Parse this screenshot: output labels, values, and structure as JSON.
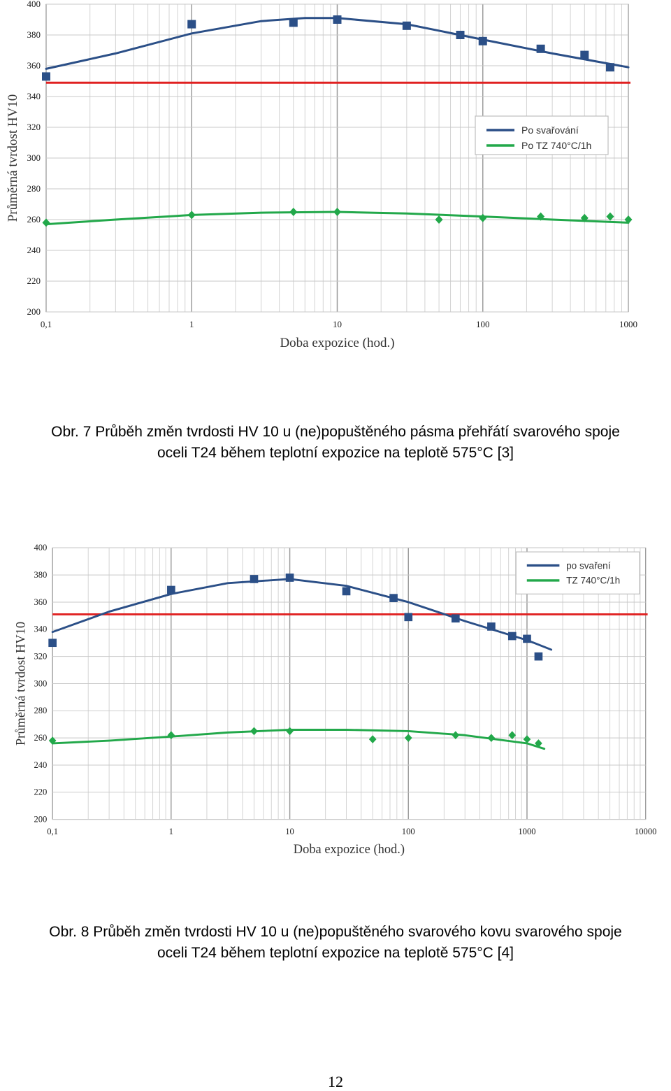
{
  "chart_data": [
    {
      "type": "scatter",
      "title": "",
      "xlabel": "Doba expozice (hod.)",
      "ylabel": "Průměrná tvrdost HV10",
      "xscale": "log",
      "xlim": [
        0.1,
        1000
      ],
      "ylim": [
        200,
        400
      ],
      "xticks": [
        "0,1",
        "1",
        "10",
        "100",
        "1000"
      ],
      "yticks": [
        "200",
        "220",
        "240",
        "260",
        "280",
        "300",
        "320",
        "340",
        "360",
        "380",
        "400"
      ],
      "grid": true,
      "legend_position": "right, upper-middle",
      "legend": [
        "Po svařování",
        "Po TZ 740°C/1h"
      ],
      "reference_line": {
        "y": 349,
        "color": "#e02020"
      },
      "series": [
        {
          "name": "Po svařování",
          "color": "#2b4f87",
          "marker": "square",
          "points": [
            [
              0.1,
              353
            ],
            [
              1,
              387
            ],
            [
              5,
              388
            ],
            [
              10,
              390
            ],
            [
              30,
              386
            ],
            [
              70,
              380
            ],
            [
              100,
              376
            ],
            [
              250,
              371
            ],
            [
              500,
              367
            ],
            [
              750,
              359
            ]
          ],
          "trend": [
            [
              0.1,
              358
            ],
            [
              0.3,
              368
            ],
            [
              1,
              381
            ],
            [
              3,
              389
            ],
            [
              6,
              391
            ],
            [
              10,
              391
            ],
            [
              30,
              387
            ],
            [
              100,
              377
            ],
            [
              300,
              368
            ],
            [
              1000,
              359
            ]
          ]
        },
        {
          "name": "Po TZ 740°C/1h",
          "color": "#22a84a",
          "marker": "diamond",
          "points": [
            [
              0.1,
              258
            ],
            [
              1,
              263
            ],
            [
              5,
              265
            ],
            [
              10,
              265
            ],
            [
              50,
              260
            ],
            [
              100,
              261
            ],
            [
              250,
              262
            ],
            [
              500,
              261
            ],
            [
              750,
              262
            ],
            [
              1000,
              260
            ]
          ],
          "trend": [
            [
              0.1,
              257
            ],
            [
              0.3,
              260
            ],
            [
              1,
              263
            ],
            [
              3,
              264.5
            ],
            [
              10,
              265
            ],
            [
              30,
              264
            ],
            [
              100,
              262
            ],
            [
              300,
              260
            ],
            [
              1000,
              258
            ]
          ]
        }
      ]
    },
    {
      "type": "scatter",
      "title": "",
      "xlabel": "Doba expozice (hod.)",
      "ylabel": "Průměrná tvrdost HV10",
      "xscale": "log",
      "xlim": [
        0.1,
        10000
      ],
      "ylim": [
        200,
        400
      ],
      "xticks": [
        "0,1",
        "1",
        "10",
        "100",
        "1000",
        "10000"
      ],
      "yticks": [
        "200",
        "220",
        "240",
        "260",
        "280",
        "300",
        "320",
        "340",
        "360",
        "380",
        "400"
      ],
      "grid": true,
      "legend_position": "top-right",
      "legend": [
        "po svaření",
        "TZ 740°C/1h"
      ],
      "reference_line": {
        "y": 351,
        "color": "#e02020"
      },
      "series": [
        {
          "name": "po svaření",
          "color": "#2b4f87",
          "marker": "square",
          "points": [
            [
              0.1,
              330
            ],
            [
              1,
              369
            ],
            [
              5,
              377
            ],
            [
              10,
              378
            ],
            [
              30,
              368
            ],
            [
              75,
              363
            ],
            [
              100,
              349
            ],
            [
              250,
              348
            ],
            [
              500,
              342
            ],
            [
              750,
              335
            ],
            [
              1000,
              333
            ],
            [
              1250,
              320
            ]
          ],
          "trend": [
            [
              0.1,
              338
            ],
            [
              0.3,
              353
            ],
            [
              1,
              366
            ],
            [
              3,
              374
            ],
            [
              10,
              377
            ],
            [
              30,
              372
            ],
            [
              100,
              360
            ],
            [
              300,
              346
            ],
            [
              1000,
              332
            ],
            [
              1600,
              325
            ]
          ]
        },
        {
          "name": "TZ 740°C/1h",
          "color": "#22a84a",
          "marker": "diamond",
          "points": [
            [
              0.1,
              258
            ],
            [
              1,
              262
            ],
            [
              5,
              265
            ],
            [
              10,
              265
            ],
            [
              50,
              259
            ],
            [
              100,
              260
            ],
            [
              250,
              262
            ],
            [
              500,
              260
            ],
            [
              750,
              262
            ],
            [
              1000,
              259
            ],
            [
              1250,
              256
            ]
          ],
          "trend": [
            [
              0.1,
              256
            ],
            [
              0.3,
              258
            ],
            [
              1,
              261
            ],
            [
              3,
              264
            ],
            [
              10,
              266
            ],
            [
              30,
              266
            ],
            [
              100,
              265
            ],
            [
              300,
              262
            ],
            [
              1000,
              256
            ],
            [
              1400,
              252
            ]
          ]
        }
      ]
    }
  ],
  "captions": {
    "fig7": [
      "Obr. 7 Průběh změn tvrdosti HV 10 u (ne)popuštěného pásma přehřátí svarového spoje",
      "oceli T24 během teplotní expozice na teplotě 575°C [3]"
    ],
    "fig8": [
      "Obr. 8 Průběh změn tvrdosti HV 10 u (ne)popuštěného svarového kovu svarového spoje",
      "oceli T24 během teplotní expozice na teplotě 575°C [4]"
    ]
  },
  "page_number": "12"
}
